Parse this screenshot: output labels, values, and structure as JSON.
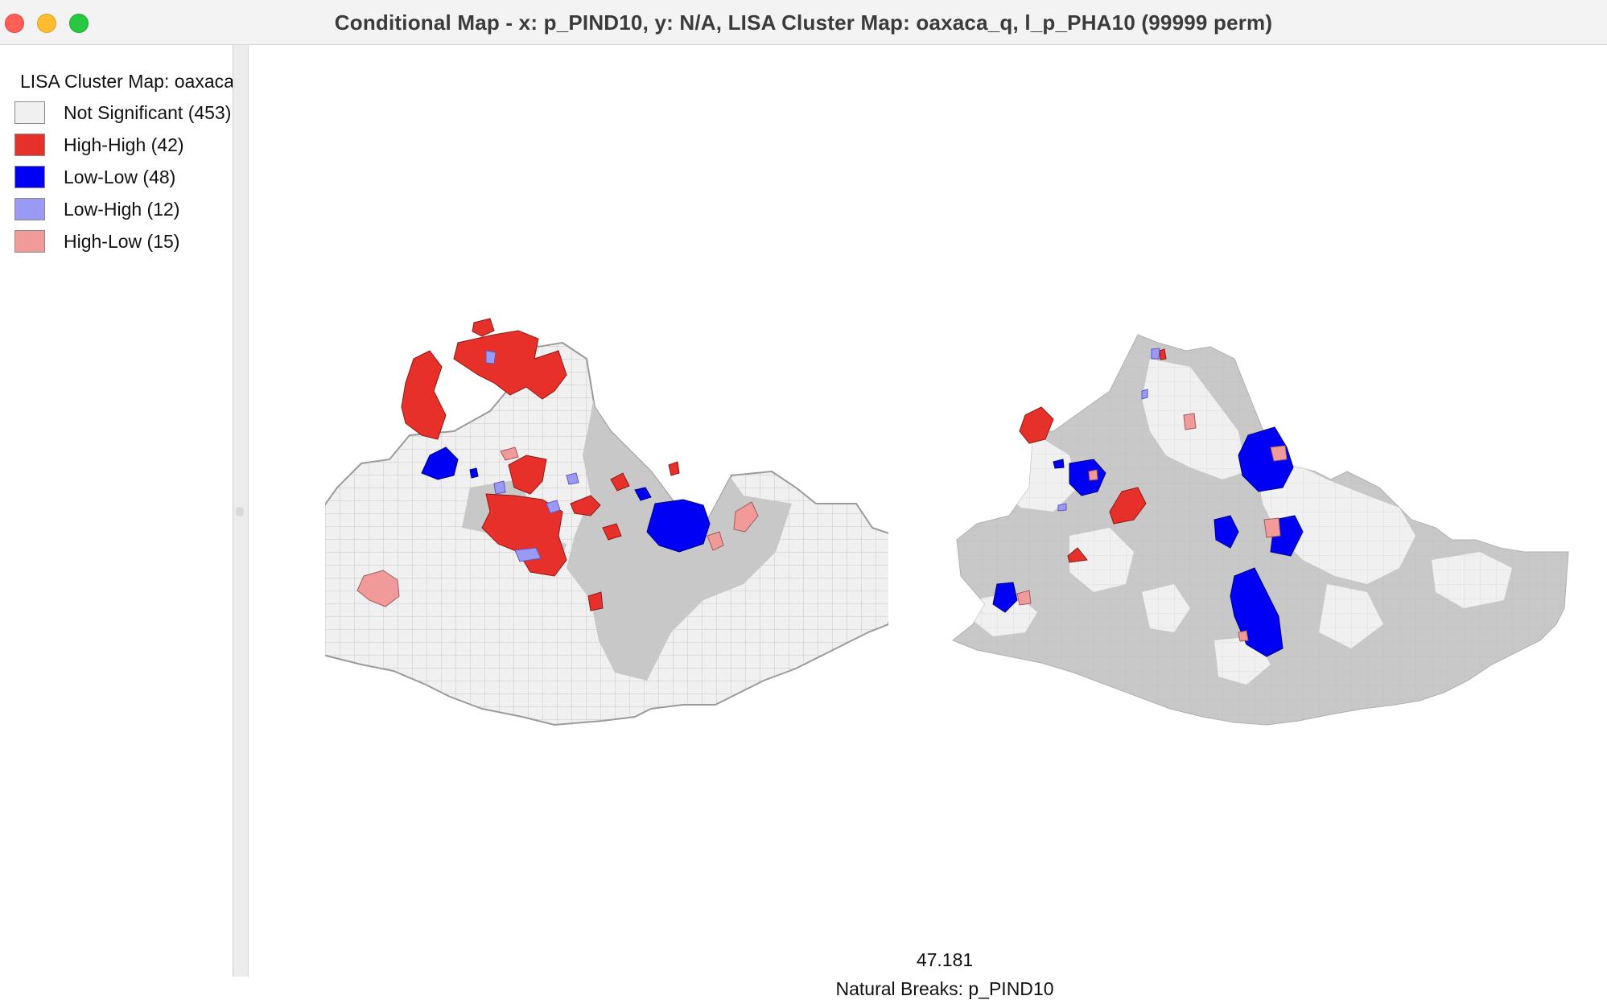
{
  "window": {
    "title": "Conditional Map - x: p_PIND10, y: N/A,  LISA Cluster Map: oaxaca_q, l_p_PHA10 (99999 perm)"
  },
  "legend": {
    "title": "LISA Cluster Map: oaxaca_q",
    "items": [
      {
        "label": "Not Significant (453)",
        "color": "#f0f0f0"
      },
      {
        "label": "High-High (42)",
        "color": "#e8302a"
      },
      {
        "label": "Low-Low (48)",
        "color": "#0000f5"
      },
      {
        "label": "Low-High (12)",
        "color": "#9a9af5"
      },
      {
        "label": "High-Low (15)",
        "color": "#f09a9a"
      }
    ]
  },
  "map_panels": [
    {
      "category": "left",
      "base_fill": "#f0f0f0",
      "alt_fill": "#c8c8c8"
    },
    {
      "category": "right",
      "base_fill": "#c8c8c8",
      "alt_fill": "#f0f0f0"
    }
  ],
  "breaks": {
    "value": "47.181",
    "label": "Natural Breaks: p_PIND10"
  }
}
